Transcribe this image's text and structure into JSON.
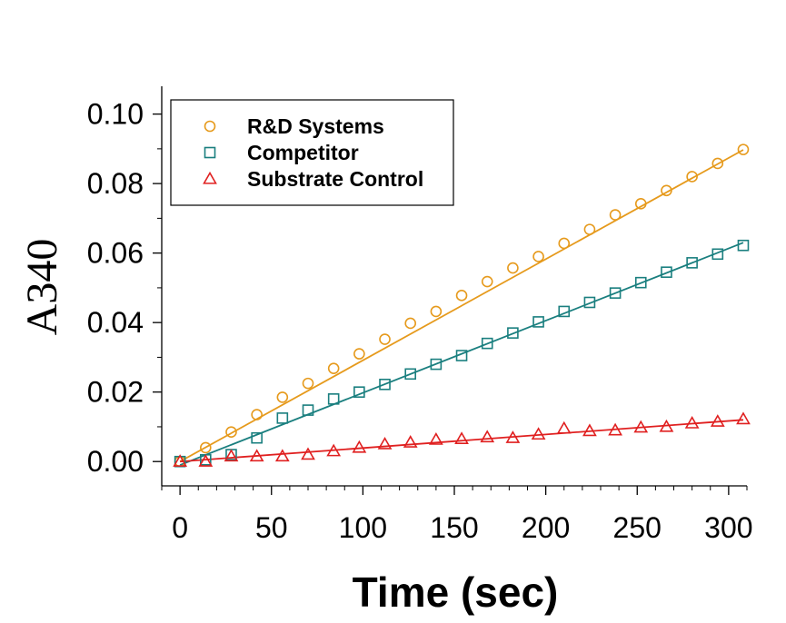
{
  "chart_data": {
    "type": "scatter",
    "xlabel": "Time (sec)",
    "ylabel": "A340",
    "xlim": [
      -10,
      310
    ],
    "ylim": [
      -0.007,
      0.108
    ],
    "x_ticks": [
      0,
      50,
      100,
      150,
      200,
      250,
      300
    ],
    "x_tick_labels": [
      "0",
      "50",
      "100",
      "150",
      "200",
      "250",
      "300"
    ],
    "y_ticks": [
      0.0,
      0.02,
      0.04,
      0.06,
      0.08,
      0.1
    ],
    "y_tick_labels": [
      "0.00",
      "0.02",
      "0.04",
      "0.06",
      "0.08",
      "0.10"
    ],
    "x": [
      0,
      14,
      28,
      42,
      56,
      70,
      84,
      98,
      112,
      126,
      140,
      154,
      168,
      182,
      196,
      210,
      224,
      238,
      252,
      266,
      280,
      294,
      308
    ],
    "legend_placement": "top-left",
    "grid": false,
    "series": [
      {
        "name": "R&D Systems",
        "marker": "circle",
        "color": "#E69A1C",
        "values": [
          0.0,
          0.004,
          0.0085,
          0.0135,
          0.0185,
          0.0225,
          0.0268,
          0.031,
          0.0352,
          0.0398,
          0.0432,
          0.0478,
          0.0518,
          0.0557,
          0.059,
          0.0628,
          0.0668,
          0.071,
          0.0742,
          0.078,
          0.082,
          0.0858,
          0.0898
        ],
        "fit": [
          0.0,
          0.0897
        ]
      },
      {
        "name": "Competitor",
        "marker": "square",
        "color": "#1A7F7F",
        "values": [
          0.0,
          0.0005,
          0.002,
          0.0068,
          0.0125,
          0.0148,
          0.018,
          0.02,
          0.0222,
          0.0252,
          0.028,
          0.0305,
          0.034,
          0.037,
          0.0402,
          0.0432,
          0.0458,
          0.0485,
          0.0515,
          0.0545,
          0.0572,
          0.0597,
          0.0622
        ],
        "fit": [
          -0.001,
          0.063
        ]
      },
      {
        "name": "Substrate Control",
        "marker": "triangle",
        "color": "#E02020",
        "values": [
          0.0,
          0.0,
          0.0015,
          0.0015,
          0.0015,
          0.002,
          0.003,
          0.004,
          0.005,
          0.0055,
          0.0063,
          0.0065,
          0.007,
          0.0068,
          0.0078,
          0.0095,
          0.0088,
          0.009,
          0.0098,
          0.01,
          0.011,
          0.0115,
          0.0122
        ],
        "fit": [
          0.0,
          0.012
        ]
      }
    ]
  }
}
